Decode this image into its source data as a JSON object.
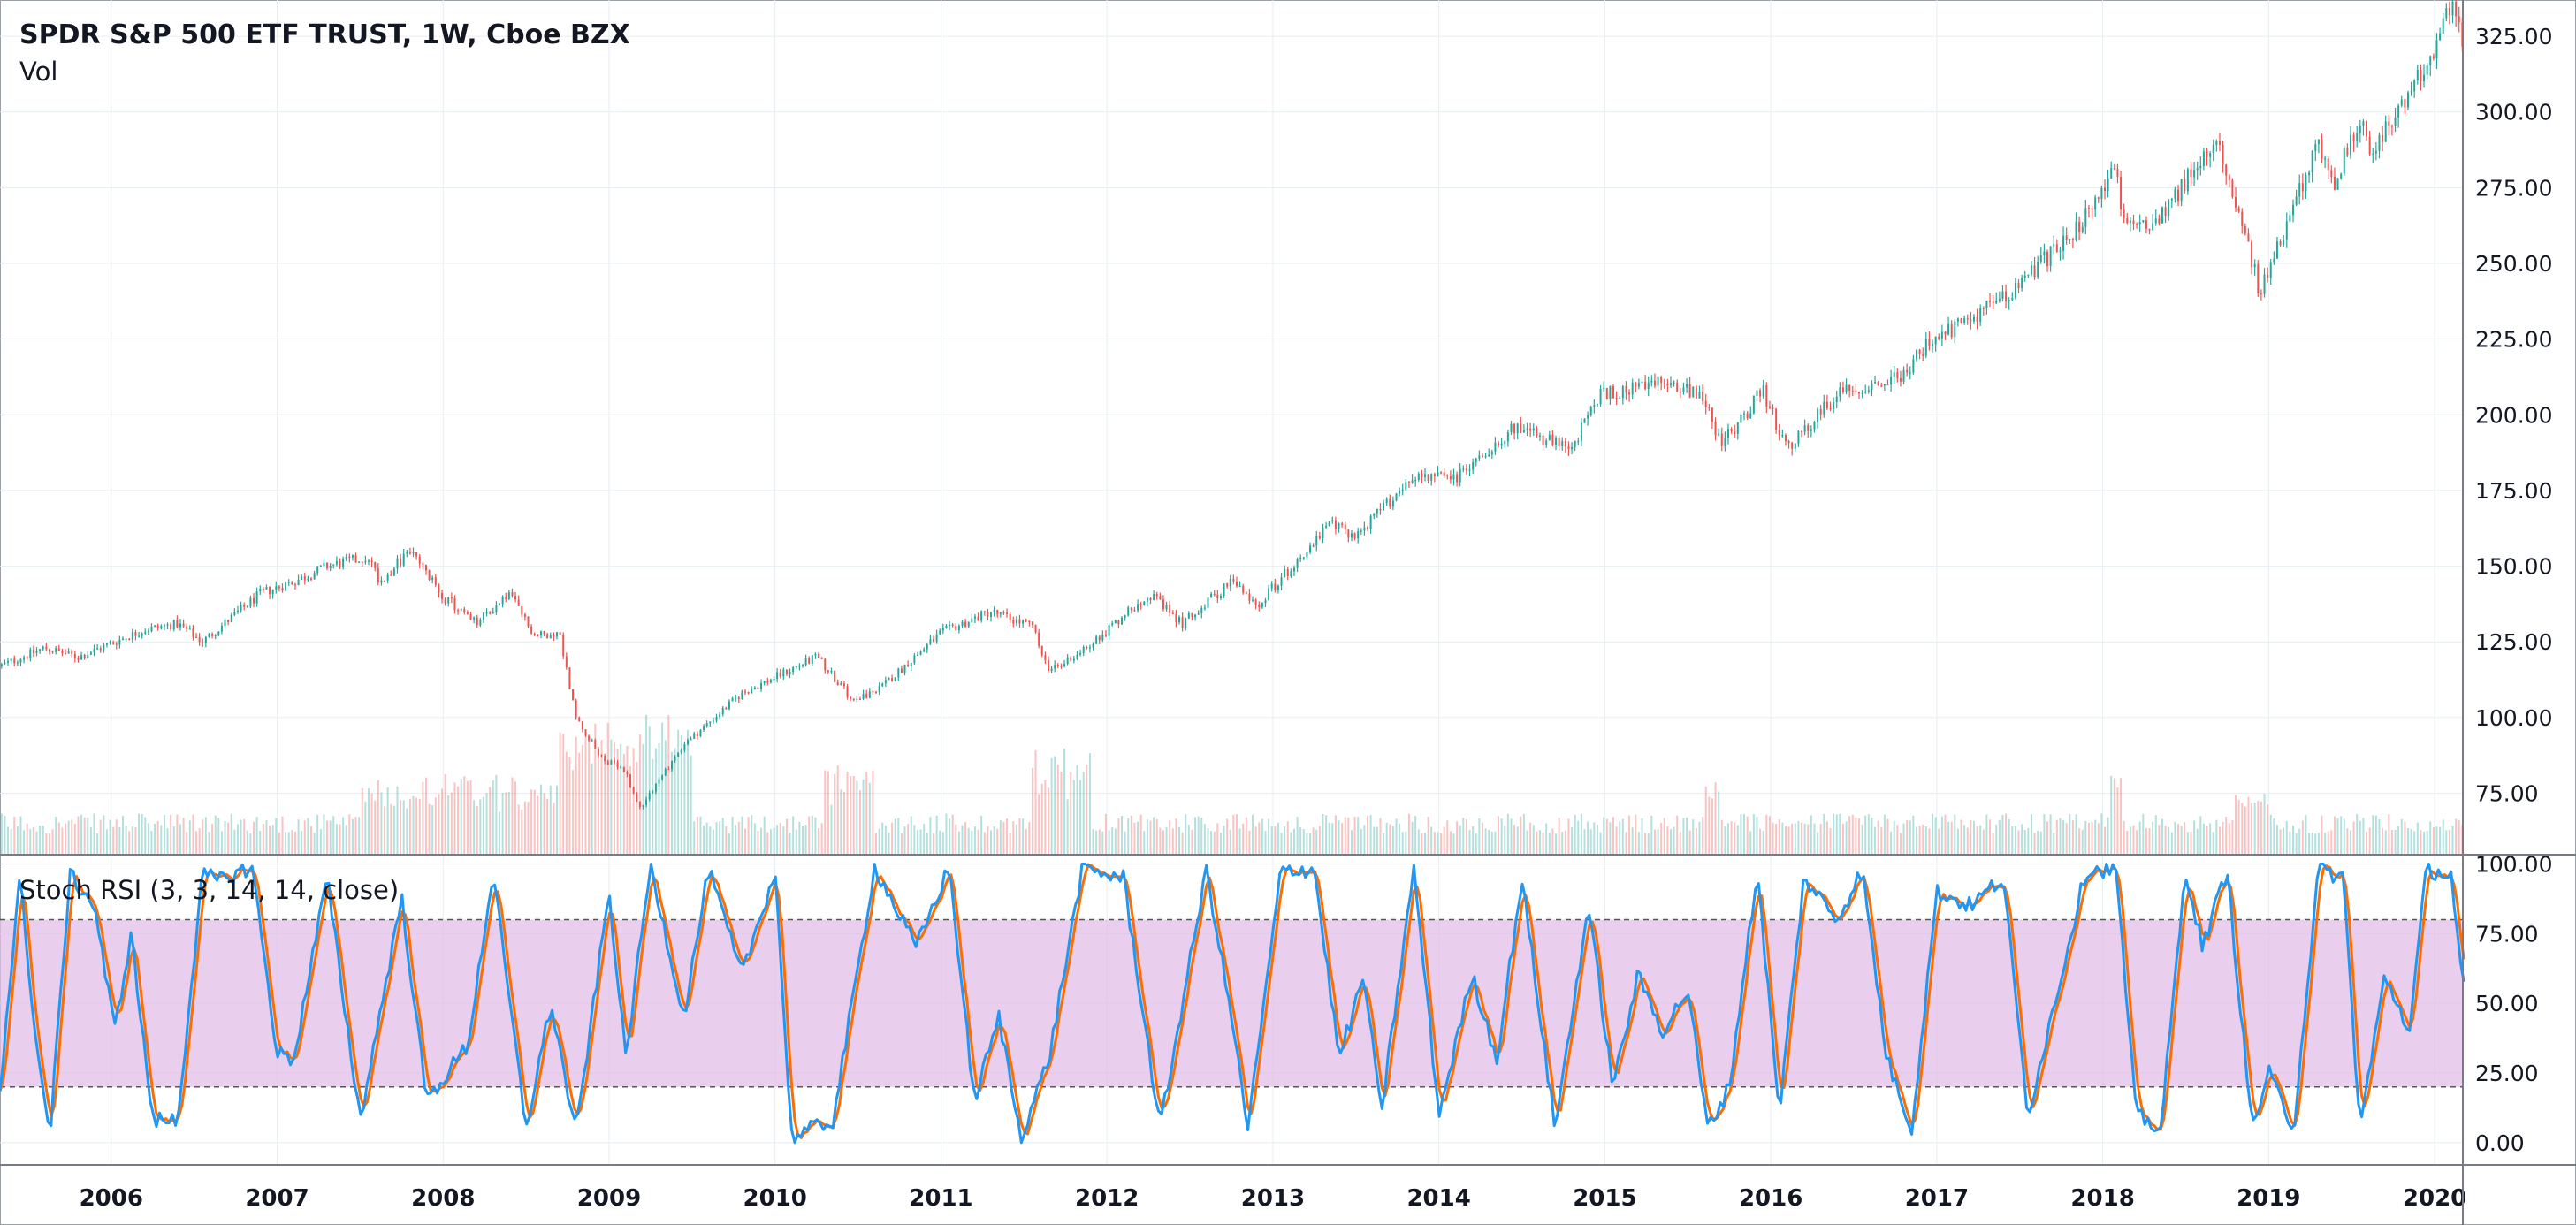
{
  "legend": {
    "title": "SPDR S&P 500 ETF TRUST, 1W, Cboe BZX",
    "volume_label": "Vol",
    "stoch_label": "Stoch RSI (3, 3, 14, 14, close)"
  },
  "colors": {
    "up": "#26a69a",
    "down": "#ef5350",
    "k_line": "#2196f3",
    "d_line": "#ff6d00",
    "band_fill": "#e1bee7",
    "grid": "#e6eef0",
    "border": "#9aa0a6"
  },
  "chart_data": [
    {
      "type": "candlestick",
      "interval": "1W",
      "x_range": [
        2005.33,
        2020.17
      ],
      "ylim": [
        55,
        337
      ],
      "y_ticks": [
        "75.00",
        "100.00",
        "125.00",
        "150.00",
        "175.00",
        "200.00",
        "225.00",
        "250.00",
        "275.00",
        "300.00",
        "325.00"
      ],
      "x_ticks": [
        "2006",
        "2007",
        "2008",
        "2009",
        "2010",
        "2011",
        "2012",
        "2013",
        "2014",
        "2015",
        "2016",
        "2017",
        "2018",
        "2019",
        "2020"
      ],
      "price_anchors": [
        {
          "t": 2005.33,
          "close": 117
        },
        {
          "t": 2005.6,
          "close": 123
        },
        {
          "t": 2005.8,
          "close": 120
        },
        {
          "t": 2006.2,
          "close": 129
        },
        {
          "t": 2006.4,
          "close": 131
        },
        {
          "t": 2006.55,
          "close": 125
        },
        {
          "t": 2006.9,
          "close": 141
        },
        {
          "t": 2007.15,
          "close": 146
        },
        {
          "t": 2007.3,
          "close": 150
        },
        {
          "t": 2007.55,
          "close": 153
        },
        {
          "t": 2007.62,
          "close": 145
        },
        {
          "t": 2007.8,
          "close": 155
        },
        {
          "t": 2008.0,
          "close": 140
        },
        {
          "t": 2008.2,
          "close": 131
        },
        {
          "t": 2008.4,
          "close": 141
        },
        {
          "t": 2008.55,
          "close": 127
        },
        {
          "t": 2008.7,
          "close": 128
        },
        {
          "t": 2008.8,
          "close": 100
        },
        {
          "t": 2008.95,
          "close": 87
        },
        {
          "t": 2009.1,
          "close": 82
        },
        {
          "t": 2009.18,
          "close": 70
        },
        {
          "t": 2009.45,
          "close": 91
        },
        {
          "t": 2009.8,
          "close": 108
        },
        {
          "t": 2010.25,
          "close": 120
        },
        {
          "t": 2010.45,
          "close": 107
        },
        {
          "t": 2010.6,
          "close": 108
        },
        {
          "t": 2011.0,
          "close": 128
        },
        {
          "t": 2011.3,
          "close": 135
        },
        {
          "t": 2011.55,
          "close": 130
        },
        {
          "t": 2011.65,
          "close": 115
        },
        {
          "t": 2011.9,
          "close": 124
        },
        {
          "t": 2012.25,
          "close": 141
        },
        {
          "t": 2012.45,
          "close": 131
        },
        {
          "t": 2012.75,
          "close": 145
        },
        {
          "t": 2012.9,
          "close": 137
        },
        {
          "t": 2013.35,
          "close": 164
        },
        {
          "t": 2013.5,
          "close": 160
        },
        {
          "t": 2013.85,
          "close": 180
        },
        {
          "t": 2014.1,
          "close": 179
        },
        {
          "t": 2014.45,
          "close": 196
        },
        {
          "t": 2014.8,
          "close": 188
        },
        {
          "t": 2014.95,
          "close": 206
        },
        {
          "t": 2015.4,
          "close": 211
        },
        {
          "t": 2015.6,
          "close": 206
        },
        {
          "t": 2015.7,
          "close": 190
        },
        {
          "t": 2015.95,
          "close": 208
        },
        {
          "t": 2016.1,
          "close": 188
        },
        {
          "t": 2016.4,
          "close": 207
        },
        {
          "t": 2016.8,
          "close": 213
        },
        {
          "t": 2016.9,
          "close": 221
        },
        {
          "t": 2017.5,
          "close": 243
        },
        {
          "t": 2017.95,
          "close": 268
        },
        {
          "t": 2018.07,
          "close": 284
        },
        {
          "t": 2018.12,
          "close": 262
        },
        {
          "t": 2018.3,
          "close": 264
        },
        {
          "t": 2018.7,
          "close": 290
        },
        {
          "t": 2018.82,
          "close": 268
        },
        {
          "t": 2018.95,
          "close": 240
        },
        {
          "t": 2019.3,
          "close": 290
        },
        {
          "t": 2019.4,
          "close": 277
        },
        {
          "t": 2019.55,
          "close": 298
        },
        {
          "t": 2019.62,
          "close": 287
        },
        {
          "t": 2019.85,
          "close": 305
        },
        {
          "t": 2020.1,
          "close": 334
        },
        {
          "t": 2020.17,
          "close": 323
        }
      ]
    },
    {
      "type": "line",
      "name": "Stoch RSI (3, 3, 14, 14, close)",
      "ylim": [
        -8,
        103
      ],
      "y_ticks": [
        "0.00",
        "25.00",
        "50.00",
        "75.00",
        "100.00"
      ],
      "band": [
        20,
        80
      ],
      "k_anchors": [
        {
          "t": 2005.33,
          "v": 20
        },
        {
          "t": 2005.45,
          "v": 95
        },
        {
          "t": 2005.55,
          "v": 35
        },
        {
          "t": 2005.63,
          "v": 2
        },
        {
          "t": 2005.75,
          "v": 96
        },
        {
          "t": 2005.9,
          "v": 85
        },
        {
          "t": 2006.02,
          "v": 40
        },
        {
          "t": 2006.12,
          "v": 75
        },
        {
          "t": 2006.25,
          "v": 8
        },
        {
          "t": 2006.4,
          "v": 8
        },
        {
          "t": 2006.55,
          "v": 96
        },
        {
          "t": 2006.65,
          "v": 94
        },
        {
          "t": 2006.85,
          "v": 99
        },
        {
          "t": 2007.0,
          "v": 32
        },
        {
          "t": 2007.1,
          "v": 30
        },
        {
          "t": 2007.3,
          "v": 95
        },
        {
          "t": 2007.5,
          "v": 8
        },
        {
          "t": 2007.75,
          "v": 88
        },
        {
          "t": 2007.9,
          "v": 15
        },
        {
          "t": 2008.15,
          "v": 35
        },
        {
          "t": 2008.3,
          "v": 97
        },
        {
          "t": 2008.5,
          "v": 5
        },
        {
          "t": 2008.65,
          "v": 50
        },
        {
          "t": 2008.8,
          "v": 3
        },
        {
          "t": 2009.0,
          "v": 90
        },
        {
          "t": 2009.1,
          "v": 30
        },
        {
          "t": 2009.25,
          "v": 100
        },
        {
          "t": 2009.45,
          "v": 45
        },
        {
          "t": 2009.6,
          "v": 98
        },
        {
          "t": 2009.8,
          "v": 60
        },
        {
          "t": 2010.0,
          "v": 98
        },
        {
          "t": 2010.1,
          "v": 2
        },
        {
          "t": 2010.35,
          "v": 8
        },
        {
          "t": 2010.6,
          "v": 99
        },
        {
          "t": 2010.85,
          "v": 70
        },
        {
          "t": 2011.05,
          "v": 99
        },
        {
          "t": 2011.2,
          "v": 15
        },
        {
          "t": 2011.35,
          "v": 45
        },
        {
          "t": 2011.48,
          "v": 2
        },
        {
          "t": 2011.65,
          "v": 30
        },
        {
          "t": 2011.85,
          "v": 98
        },
        {
          "t": 2012.1,
          "v": 95
        },
        {
          "t": 2012.32,
          "v": 5
        },
        {
          "t": 2012.6,
          "v": 98
        },
        {
          "t": 2012.75,
          "v": 45
        },
        {
          "t": 2012.85,
          "v": 5
        },
        {
          "t": 2013.05,
          "v": 98
        },
        {
          "t": 2013.25,
          "v": 98
        },
        {
          "t": 2013.4,
          "v": 30
        },
        {
          "t": 2013.55,
          "v": 60
        },
        {
          "t": 2013.65,
          "v": 10
        },
        {
          "t": 2013.85,
          "v": 98
        },
        {
          "t": 2014.0,
          "v": 10
        },
        {
          "t": 2014.2,
          "v": 60
        },
        {
          "t": 2014.35,
          "v": 30
        },
        {
          "t": 2014.5,
          "v": 95
        },
        {
          "t": 2014.7,
          "v": 5
        },
        {
          "t": 2014.9,
          "v": 85
        },
        {
          "t": 2015.05,
          "v": 20
        },
        {
          "t": 2015.2,
          "v": 60
        },
        {
          "t": 2015.35,
          "v": 40
        },
        {
          "t": 2015.5,
          "v": 55
        },
        {
          "t": 2015.62,
          "v": 5
        },
        {
          "t": 2015.75,
          "v": 20
        },
        {
          "t": 2015.92,
          "v": 98
        },
        {
          "t": 2016.05,
          "v": 10
        },
        {
          "t": 2016.2,
          "v": 95
        },
        {
          "t": 2016.4,
          "v": 80
        },
        {
          "t": 2016.55,
          "v": 98
        },
        {
          "t": 2016.7,
          "v": 30
        },
        {
          "t": 2016.85,
          "v": 5
        },
        {
          "t": 2017.0,
          "v": 90
        },
        {
          "t": 2017.2,
          "v": 85
        },
        {
          "t": 2017.4,
          "v": 95
        },
        {
          "t": 2017.55,
          "v": 10
        },
        {
          "t": 2017.75,
          "v": 60
        },
        {
          "t": 2017.9,
          "v": 98
        },
        {
          "t": 2018.08,
          "v": 98
        },
        {
          "t": 2018.2,
          "v": 10
        },
        {
          "t": 2018.35,
          "v": 5
        },
        {
          "t": 2018.5,
          "v": 98
        },
        {
          "t": 2018.6,
          "v": 70
        },
        {
          "t": 2018.75,
          "v": 98
        },
        {
          "t": 2018.9,
          "v": 5
        },
        {
          "t": 2019.0,
          "v": 25
        },
        {
          "t": 2019.15,
          "v": 5
        },
        {
          "t": 2019.3,
          "v": 98
        },
        {
          "t": 2019.45,
          "v": 95
        },
        {
          "t": 2019.55,
          "v": 5
        },
        {
          "t": 2019.7,
          "v": 60
        },
        {
          "t": 2019.85,
          "v": 40
        },
        {
          "t": 2019.95,
          "v": 98
        },
        {
          "t": 2020.1,
          "v": 96
        },
        {
          "t": 2020.17,
          "v": 55
        }
      ]
    }
  ]
}
